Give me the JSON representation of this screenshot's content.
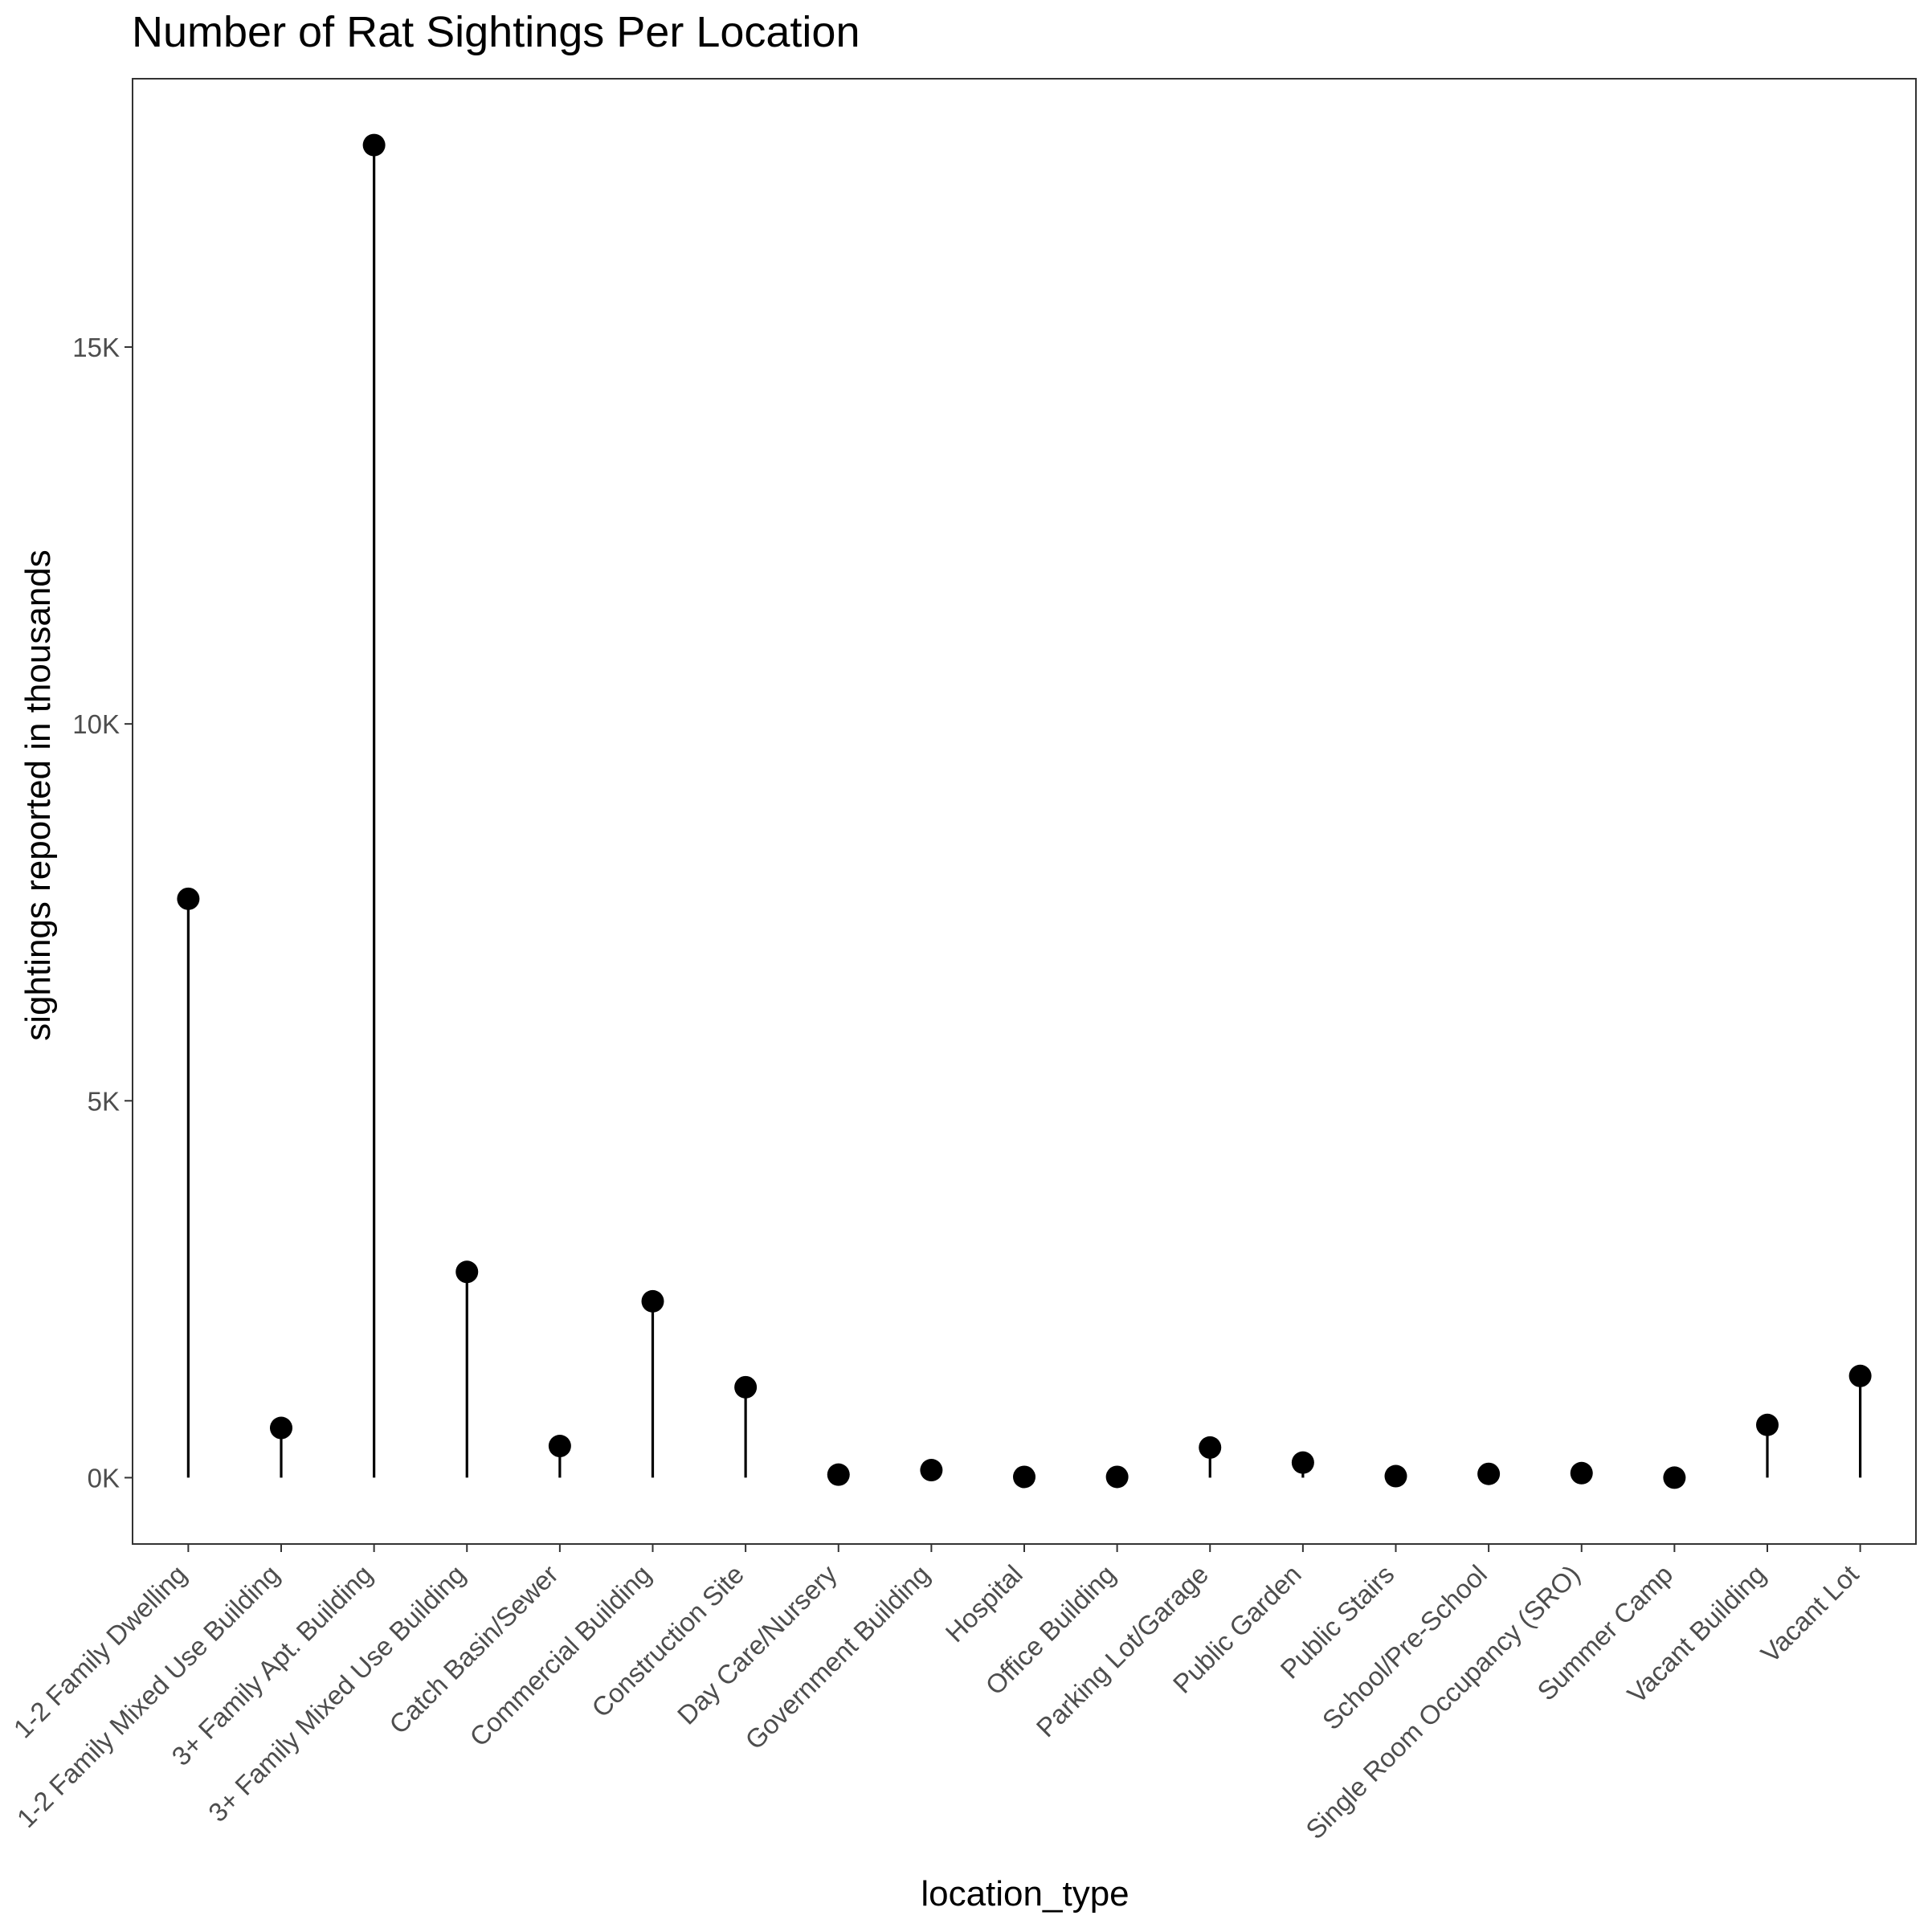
{
  "chart_data": {
    "type": "lollipop",
    "title": "Number of Rat Sightings Per Location",
    "xlabel": "location_type",
    "ylabel": "sightings reported in thousands",
    "categories": [
      "1-2 Family Dwelling",
      "1-2 Family Mixed Use Building",
      "3+ Family Apt. Building",
      "3+ Family Mixed Use Building",
      "Catch Basin/Sewer",
      "Commercial Building",
      "Construction Site",
      "Day Care/Nursery",
      "Government Building",
      "Hospital",
      "Office Building",
      "Parking Lot/Garage",
      "Public Garden",
      "Public Stairs",
      "School/Pre-School",
      "Single Room Occupancy (SRO)",
      "Summer Camp",
      "Vacant Building",
      "Vacant Lot"
    ],
    "values": [
      7680,
      660,
      17680,
      2730,
      420,
      2340,
      1200,
      40,
      100,
      10,
      10,
      400,
      200,
      20,
      50,
      60,
      0,
      700,
      1350
    ],
    "ylim": [
      -880,
      18560
    ],
    "yticks": [
      0,
      5000,
      10000,
      15000
    ],
    "ytick_labels": [
      "0K",
      "5K",
      "10K",
      "15K"
    ],
    "grid": false,
    "legend": "none",
    "colors": {
      "marker": "#000000",
      "stem": "#000000",
      "axis": "#333333",
      "tick_text": "#4d4d4d"
    }
  }
}
